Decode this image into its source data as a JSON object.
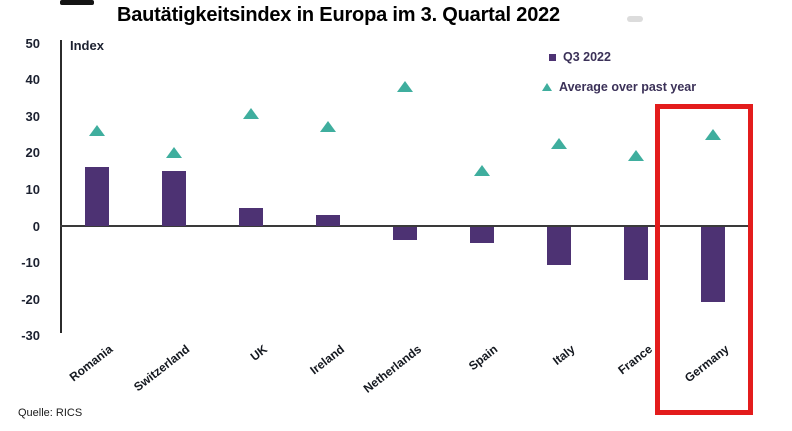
{
  "title": "Bautätigkeitsindex in Europa im 3. Quartal 2022",
  "source": "Quelle: RICS",
  "axis_unit_label": "Index",
  "legend": {
    "q3_label": "Q3 2022",
    "avg_label": "Average over past year"
  },
  "colors": {
    "bar": "#4d3273",
    "triangle": "#3fae9e",
    "highlight_box": "#e31c1c",
    "legend_text": "#3b3158",
    "axis": "#2b2b2b"
  },
  "chart_data": {
    "type": "bar",
    "title": "Bautätigkeitsindex in Europa im 3. Quartal 2022",
    "ylabel": "Index",
    "xlabel": "",
    "ylim": [
      -30,
      50
    ],
    "yticks": [
      50,
      40,
      30,
      20,
      10,
      0,
      -10,
      -20,
      -30
    ],
    "grid": false,
    "legend_position": "top-right",
    "highlighted_category": "Germany",
    "categories": [
      "Romania",
      "Switzerland",
      "UK",
      "Ireland",
      "Netherlands",
      "Spain",
      "Italy",
      "France",
      "Germany"
    ],
    "series": [
      {
        "name": "Q3 2022",
        "type": "bar",
        "values": [
          16,
          15,
          5,
          3,
          -3.5,
          -4.5,
          -10.5,
          -14.5,
          -20.5
        ]
      },
      {
        "name": "Average over past year",
        "type": "scatter-triangle",
        "values": [
          26,
          20,
          30.5,
          27,
          38,
          15,
          22.5,
          19,
          25
        ]
      }
    ]
  }
}
